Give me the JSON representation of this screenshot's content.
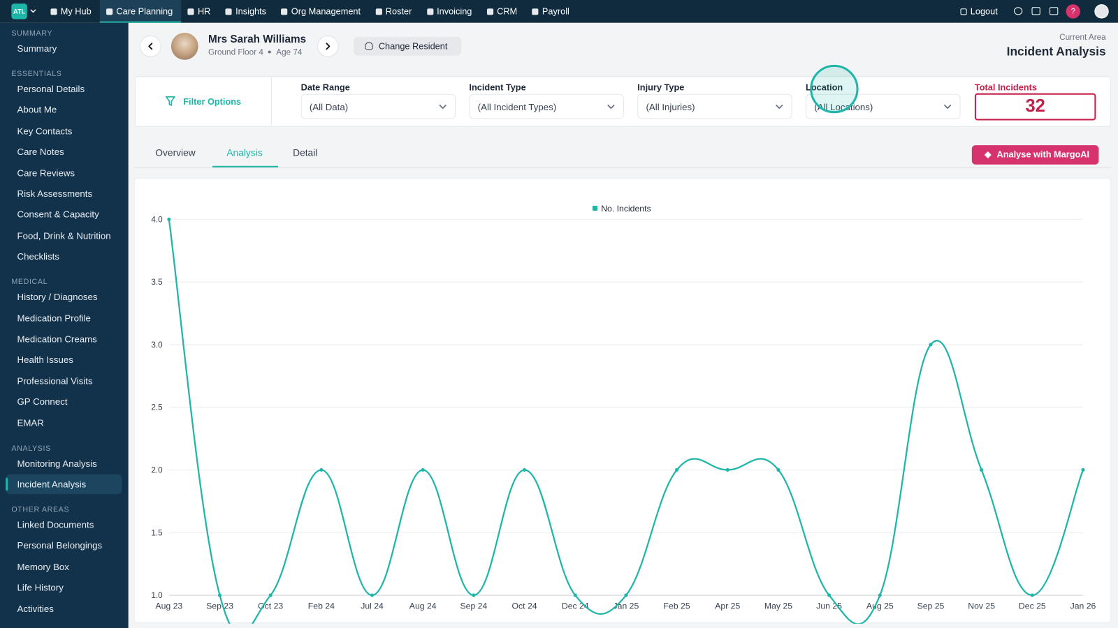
{
  "top_nav": {
    "logo": "ATL",
    "items": [
      "My Hub",
      "Care Planning",
      "HR",
      "Insights",
      "Org Management",
      "Roster",
      "Invoicing",
      "CRM",
      "Payroll"
    ],
    "active": 1,
    "logout": "Logout",
    "help": "?"
  },
  "sidebar": {
    "active": "Incident Analysis",
    "sections": [
      {
        "title": "SUMMARY",
        "items": [
          "Summary"
        ]
      },
      {
        "title": "ESSENTIALS",
        "items": [
          "Personal Details",
          "About Me",
          "Key Contacts",
          "Care Notes",
          "Care Reviews",
          "Risk Assessments",
          "Consent & Capacity",
          "Food, Drink & Nutrition",
          "Checklists"
        ]
      },
      {
        "title": "MEDICAL",
        "items": [
          "History / Diagnoses",
          "Medication Profile",
          "Medication Creams",
          "Health Issues",
          "Professional Visits",
          "GP Connect",
          "EMAR"
        ]
      },
      {
        "title": "ANALYSIS",
        "items": [
          "Monitoring Analysis",
          "Incident Analysis"
        ]
      },
      {
        "title": "OTHER AREAS",
        "items": [
          "Linked Documents",
          "Personal Belongings",
          "Memory Box",
          "Life History",
          "Activities"
        ]
      }
    ]
  },
  "header": {
    "name": "Mrs Sarah Williams",
    "location": "Ground Floor 4",
    "age": "Age 74",
    "change_button": "Change Resident",
    "area_label": "Current Area",
    "area": "Incident Analysis"
  },
  "filters": {
    "title": "Filter Options",
    "fields": [
      {
        "label": "Date Range",
        "value": "(All Data)"
      },
      {
        "label": "Incident Type",
        "value": "(All Incident Types)"
      },
      {
        "label": "Injury Type",
        "value": "(All Injuries)"
      },
      {
        "label": "Location",
        "value": "(All Locations)"
      }
    ],
    "total_label": "Total Incidents",
    "total": 32
  },
  "tabs": {
    "items": [
      "Overview",
      "Analysis",
      "Detail"
    ],
    "active": 1
  },
  "action_button": "Analyse with MargoAI",
  "chart_data": {
    "type": "line",
    "categories": [
      "Aug 23",
      "Sep 23",
      "Oct 23",
      "Feb 24",
      "Jul 24",
      "Aug 24",
      "Sep 24",
      "Oct 24",
      "Dec 24",
      "Jan 25",
      "Feb 25",
      "Apr 25",
      "May 25",
      "Jun 25",
      "Aug 25",
      "Sep 25",
      "Nov 25",
      "Dec 25",
      "Jan 26"
    ],
    "series": [
      {
        "name": "No. Incidents",
        "color": "#1fb5a8",
        "values": [
          4,
          1,
          1,
          2,
          1,
          2,
          1,
          2,
          1,
          1,
          2,
          2,
          2,
          1,
          1,
          3,
          2,
          1,
          2
        ]
      }
    ],
    "ylim": [
      1,
      4
    ],
    "yticks": [
      {
        "value": 1,
        "label": "1.0"
      },
      1.5,
      {
        "value": 2,
        "label": "2.0"
      },
      2.5,
      {
        "value": 3,
        "label": "3.0"
      },
      3.5,
      {
        "value": 4,
        "label": "4.0"
      }
    ],
    "grid": true,
    "legend": "top"
  }
}
